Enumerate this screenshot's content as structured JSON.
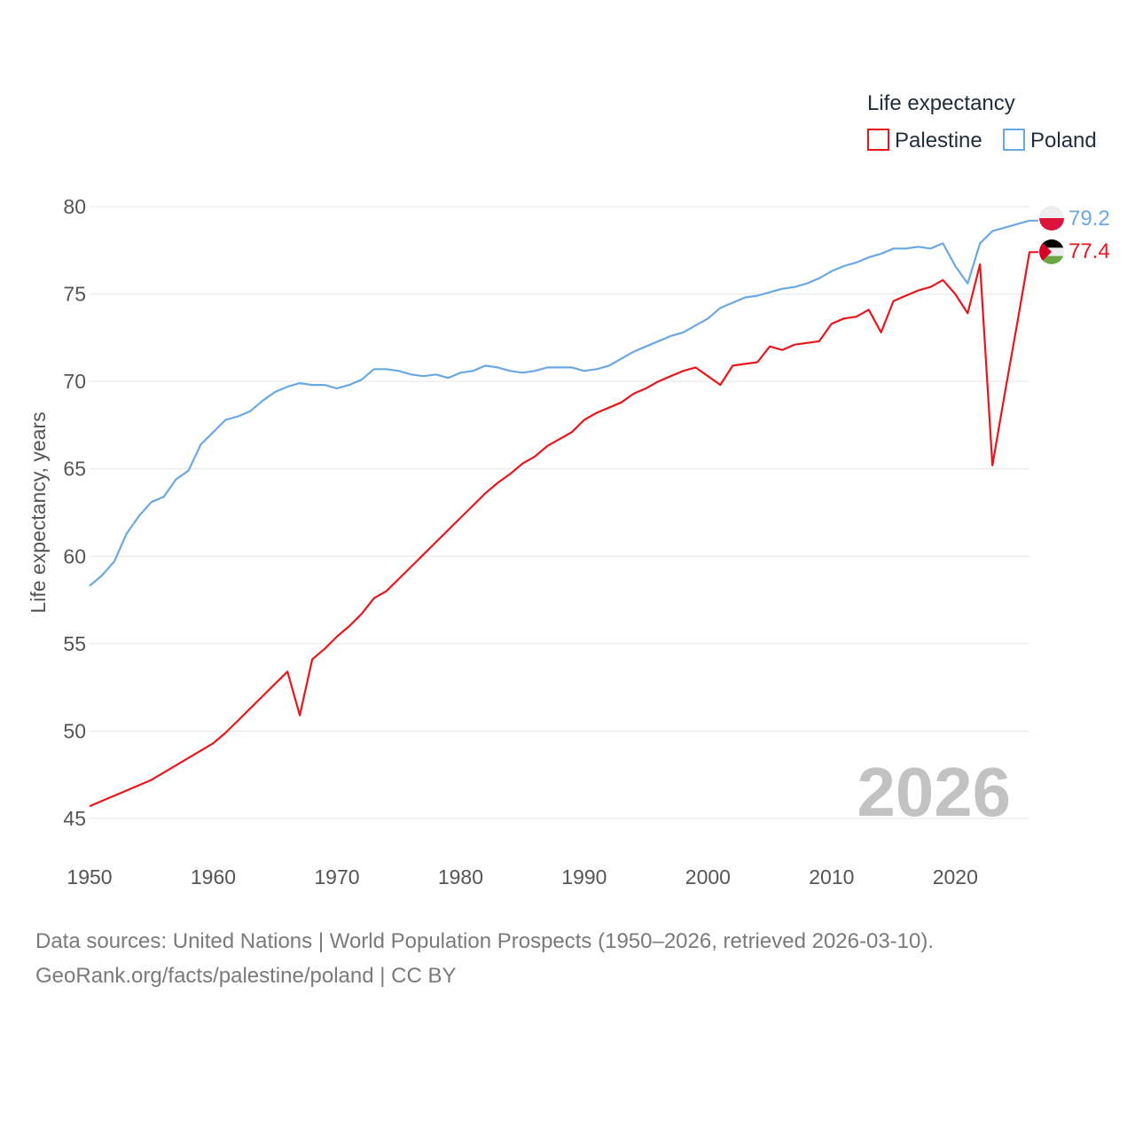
{
  "chart_data": {
    "type": "line",
    "title": "",
    "legend": {
      "title": "Life expectancy",
      "position": "top-right"
    },
    "xlabel": "",
    "ylabel": "Life expectancy, years",
    "xlim": [
      1950,
      2026
    ],
    "ylim": [
      45,
      80
    ],
    "x_ticks": [
      1950,
      1960,
      1970,
      1980,
      1990,
      2000,
      2010,
      2020
    ],
    "y_ticks": [
      45,
      50,
      55,
      60,
      65,
      70,
      75,
      80
    ],
    "year_label": "2026",
    "series": [
      {
        "name": "Palestine",
        "color": "#e8161b",
        "flag": "palestine-flag-icon",
        "end_value": "77.4",
        "points": [
          [
            1950,
            45.7
          ],
          [
            1955,
            47.2
          ],
          [
            1960,
            49.3
          ],
          [
            1961,
            49.9
          ],
          [
            1962,
            50.6
          ],
          [
            1963,
            51.3
          ],
          [
            1964,
            52.0
          ],
          [
            1965,
            52.7
          ],
          [
            1966,
            53.4
          ],
          [
            1967,
            50.9
          ],
          [
            1968,
            54.1
          ],
          [
            1969,
            54.7
          ],
          [
            1970,
            55.4
          ],
          [
            1971,
            56.0
          ],
          [
            1972,
            56.7
          ],
          [
            1973,
            57.6
          ],
          [
            1974,
            58.0
          ],
          [
            1975,
            58.7
          ],
          [
            1976,
            59.4
          ],
          [
            1977,
            60.1
          ],
          [
            1978,
            60.8
          ],
          [
            1979,
            61.5
          ],
          [
            1980,
            62.2
          ],
          [
            1981,
            62.9
          ],
          [
            1982,
            63.6
          ],
          [
            1983,
            64.2
          ],
          [
            1984,
            64.7
          ],
          [
            1985,
            65.3
          ],
          [
            1986,
            65.7
          ],
          [
            1987,
            66.3
          ],
          [
            1988,
            66.7
          ],
          [
            1989,
            67.1
          ],
          [
            1990,
            67.8
          ],
          [
            1991,
            68.2
          ],
          [
            1992,
            68.5
          ],
          [
            1993,
            68.8
          ],
          [
            1994,
            69.3
          ],
          [
            1995,
            69.6
          ],
          [
            1996,
            70.0
          ],
          [
            1997,
            70.3
          ],
          [
            1998,
            70.6
          ],
          [
            1999,
            70.8
          ],
          [
            2000,
            70.3
          ],
          [
            2001,
            69.8
          ],
          [
            2002,
            70.9
          ],
          [
            2003,
            71.0
          ],
          [
            2004,
            71.1
          ],
          [
            2005,
            72.0
          ],
          [
            2006,
            71.8
          ],
          [
            2007,
            72.1
          ],
          [
            2008,
            72.2
          ],
          [
            2009,
            72.3
          ],
          [
            2010,
            73.3
          ],
          [
            2011,
            73.6
          ],
          [
            2012,
            73.7
          ],
          [
            2013,
            74.1
          ],
          [
            2014,
            72.8
          ],
          [
            2015,
            74.6
          ],
          [
            2016,
            74.9
          ],
          [
            2017,
            75.2
          ],
          [
            2018,
            75.4
          ],
          [
            2019,
            75.8
          ],
          [
            2020,
            75.0
          ],
          [
            2021,
            73.9
          ],
          [
            2022,
            76.7
          ],
          [
            2023,
            65.2
          ],
          [
            2024,
            69.3
          ],
          [
            2025,
            73.3
          ],
          [
            2026,
            77.4
          ]
        ]
      },
      {
        "name": "Poland",
        "color": "#6aa8e3",
        "flag": "poland-flag-icon",
        "end_value": "79.2",
        "points": [
          [
            1950,
            58.3
          ],
          [
            1951,
            58.9
          ],
          [
            1952,
            59.7
          ],
          [
            1953,
            61.3
          ],
          [
            1954,
            62.3
          ],
          [
            1955,
            63.1
          ],
          [
            1956,
            63.4
          ],
          [
            1957,
            64.4
          ],
          [
            1958,
            64.9
          ],
          [
            1959,
            66.4
          ],
          [
            1960,
            67.1
          ],
          [
            1961,
            67.8
          ],
          [
            1962,
            68.0
          ],
          [
            1963,
            68.3
          ],
          [
            1964,
            68.9
          ],
          [
            1965,
            69.4
          ],
          [
            1966,
            69.7
          ],
          [
            1967,
            69.9
          ],
          [
            1968,
            69.8
          ],
          [
            1969,
            69.8
          ],
          [
            1970,
            69.6
          ],
          [
            1971,
            69.8
          ],
          [
            1972,
            70.1
          ],
          [
            1973,
            70.7
          ],
          [
            1974,
            70.7
          ],
          [
            1975,
            70.6
          ],
          [
            1976,
            70.4
          ],
          [
            1977,
            70.3
          ],
          [
            1978,
            70.4
          ],
          [
            1979,
            70.2
          ],
          [
            1980,
            70.5
          ],
          [
            1981,
            70.6
          ],
          [
            1982,
            70.9
          ],
          [
            1983,
            70.8
          ],
          [
            1984,
            70.6
          ],
          [
            1985,
            70.5
          ],
          [
            1986,
            70.6
          ],
          [
            1987,
            70.8
          ],
          [
            1988,
            70.8
          ],
          [
            1989,
            70.8
          ],
          [
            1990,
            70.6
          ],
          [
            1991,
            70.7
          ],
          [
            1992,
            70.9
          ],
          [
            1993,
            71.3
          ],
          [
            1994,
            71.7
          ],
          [
            1995,
            72.0
          ],
          [
            1996,
            72.3
          ],
          [
            1997,
            72.6
          ],
          [
            1998,
            72.8
          ],
          [
            1999,
            73.2
          ],
          [
            2000,
            73.6
          ],
          [
            2001,
            74.2
          ],
          [
            2002,
            74.5
          ],
          [
            2003,
            74.8
          ],
          [
            2004,
            74.9
          ],
          [
            2005,
            75.1
          ],
          [
            2006,
            75.3
          ],
          [
            2007,
            75.4
          ],
          [
            2008,
            75.6
          ],
          [
            2009,
            75.9
          ],
          [
            2010,
            76.3
          ],
          [
            2011,
            76.6
          ],
          [
            2012,
            76.8
          ],
          [
            2013,
            77.1
          ],
          [
            2014,
            77.3
          ],
          [
            2015,
            77.6
          ],
          [
            2016,
            77.6
          ],
          [
            2017,
            77.7
          ],
          [
            2018,
            77.6
          ],
          [
            2019,
            77.9
          ],
          [
            2020,
            76.6
          ],
          [
            2021,
            75.6
          ],
          [
            2022,
            77.9
          ],
          [
            2023,
            78.6
          ],
          [
            2024,
            78.8
          ],
          [
            2025,
            79.0
          ],
          [
            2026,
            79.2
          ]
        ]
      }
    ]
  },
  "footer": {
    "sources_line": "Data sources: United Nations | World Population Prospects (1950–2026, retrieved 2026-03-10).",
    "credit_line": "GeoRank.org/facts/palestine/poland | CC BY"
  }
}
